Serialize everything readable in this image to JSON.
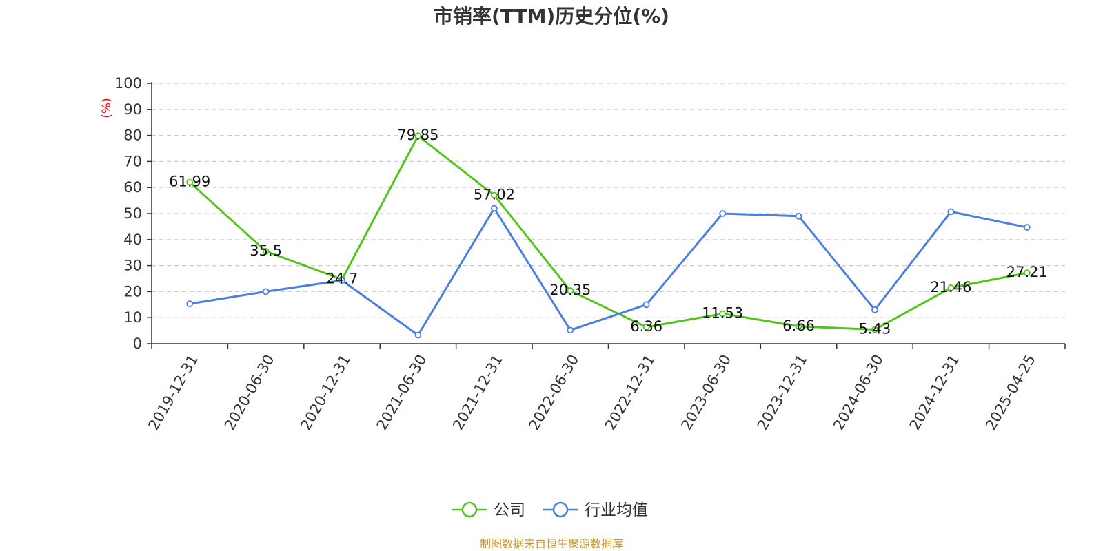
{
  "chart_data": {
    "type": "line",
    "title": "市销率(TTM)历史分位(%)",
    "ylabel": "(%)",
    "xlabel": "",
    "ylim": [
      0,
      100
    ],
    "yticks": [
      0,
      10,
      20,
      30,
      40,
      50,
      60,
      70,
      80,
      90,
      100
    ],
    "grid": true,
    "legend_position": "bottom-center",
    "categories": [
      "2019-12-31",
      "2020-06-30",
      "2020-12-31",
      "2021-06-30",
      "2021-12-31",
      "2022-06-30",
      "2022-12-31",
      "2023-06-30",
      "2023-12-31",
      "2024-06-30",
      "2024-12-31",
      "2025-04-25"
    ],
    "series": [
      {
        "name": "公司",
        "color": "#52c41a",
        "show_labels": true,
        "values": [
          61.99,
          35.5,
          24.7,
          79.85,
          57.02,
          20.35,
          6.36,
          11.53,
          6.66,
          5.43,
          21.46,
          27.21
        ]
      },
      {
        "name": "行业均值",
        "color": "#4a7fe0",
        "show_labels": false,
        "values": [
          15.3,
          20.0,
          24.3,
          3.3,
          52.0,
          5.2,
          15.0,
          50.0,
          49.0,
          13.0,
          50.7,
          44.7
        ]
      }
    ]
  },
  "source": "制图数据来自恒生聚源数据库",
  "colors": {
    "axis": "#333333",
    "grid": "#cccccc",
    "ylabel": "#ff0000",
    "source": "#c8962a"
  }
}
